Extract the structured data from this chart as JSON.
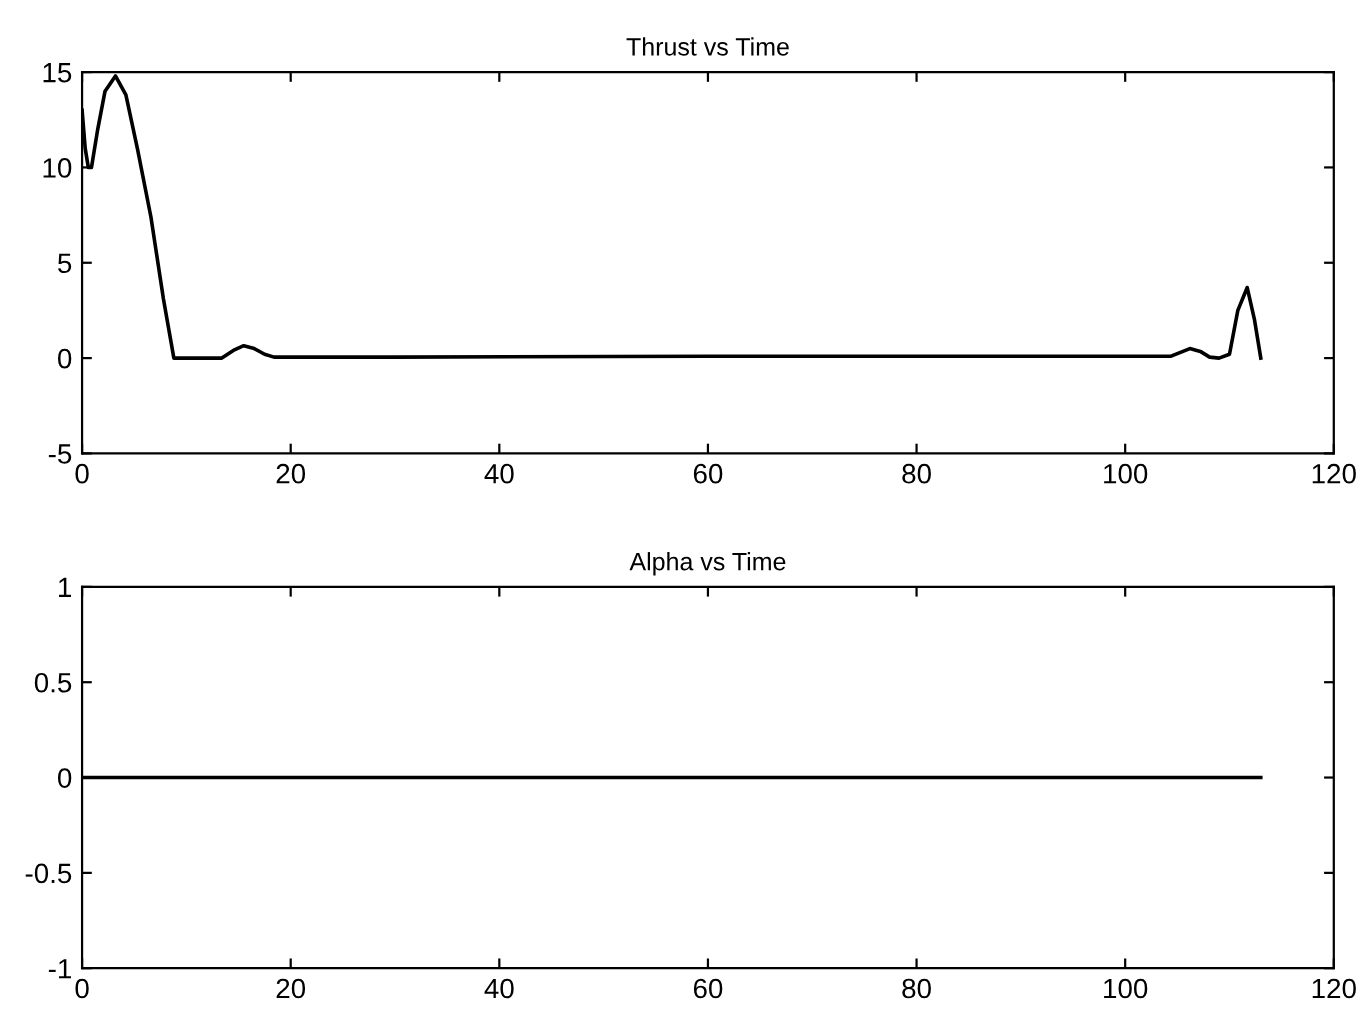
{
  "chart_data": [
    {
      "type": "line",
      "title": "Thrust vs Time",
      "x": [
        0,
        0.3,
        0.6,
        0.9,
        1.5,
        2.2,
        3.2,
        4.2,
        5.3,
        6.6,
        7.8,
        8.8,
        10,
        12,
        13.4,
        14.5,
        15.5,
        16.5,
        17.5,
        18.4,
        30,
        60,
        90,
        104.4,
        105.3,
        106.2,
        107.2,
        108.1,
        109,
        110,
        110.8,
        111.7,
        112.4,
        113
      ],
      "series": [
        {
          "color": "#000000",
          "values": [
            13,
            11,
            10,
            10,
            12,
            14,
            14.8,
            13.8,
            11,
            7.4,
            3.1,
            0,
            0,
            0,
            0,
            0.4,
            0.65,
            0.5,
            0.2,
            0.05,
            0.05,
            0.1,
            0.1,
            0.1,
            0.3,
            0.5,
            0.35,
            0.05,
            0,
            0.2,
            2.5,
            3.7,
            2,
            0
          ]
        }
      ],
      "xlim": [
        0,
        120
      ],
      "xticks": [
        0,
        20,
        40,
        60,
        80,
        100,
        120
      ],
      "ylim": [
        -5,
        15
      ],
      "yticks": [
        -5,
        0,
        5,
        10,
        15
      ],
      "grid": false,
      "legend": false
    },
    {
      "type": "line",
      "title": "Alpha vs Time",
      "x": [
        0,
        113
      ],
      "series": [
        {
          "color": "#000000",
          "values": [
            0,
            0
          ]
        }
      ],
      "xlim": [
        0,
        120
      ],
      "xticks": [
        0,
        20,
        40,
        60,
        80,
        100,
        120
      ],
      "ylim": [
        -1,
        1
      ],
      "yticks": [
        -1,
        -0.5,
        0,
        0.5,
        1
      ],
      "grid": false,
      "legend": false
    }
  ]
}
